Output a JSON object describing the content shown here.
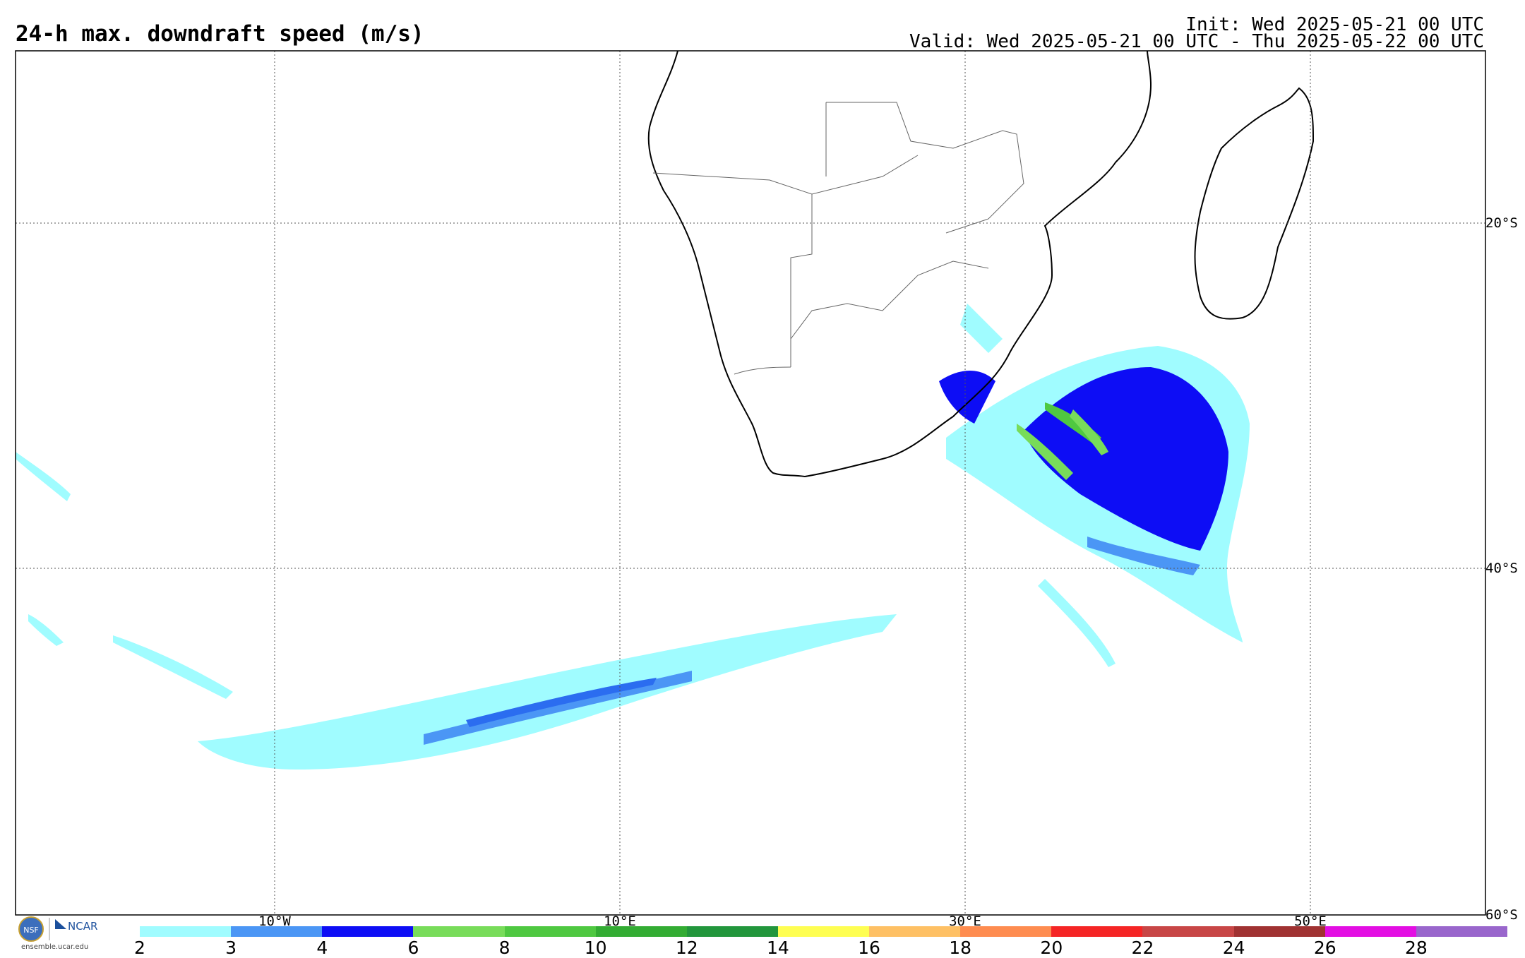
{
  "header": {
    "title": "24-h max. downdraft speed (m/s)",
    "init": "Init: Wed 2025-05-21 00 UTC",
    "valid": "Valid: Wed 2025-05-21 00 UTC - Thu 2025-05-22 00 UTC"
  },
  "map": {
    "lon_labels": [
      "10°W",
      "10°E",
      "30°E",
      "50°E"
    ],
    "lat_labels": [
      "20°S",
      "40°S",
      "60°S"
    ]
  },
  "colorbar": {
    "levels": [
      "2",
      "3",
      "4",
      "6",
      "8",
      "10",
      "12",
      "14",
      "16",
      "18",
      "20",
      "22",
      "24",
      "26",
      "28"
    ],
    "colors": [
      "#a0fcff",
      "#4b96f5",
      "#0d0df5",
      "#78dc5a",
      "#4fc841",
      "#33ac33",
      "#22963c",
      "#fefe52",
      "#fec064",
      "#fe8c50",
      "#f52525",
      "#c84646",
      "#a03232",
      "#e30ee3",
      "#9966cc"
    ]
  },
  "branding": {
    "url": "ensemble.ucar.edu",
    "ncar": "NCAR",
    "nsf": "NSF"
  }
}
